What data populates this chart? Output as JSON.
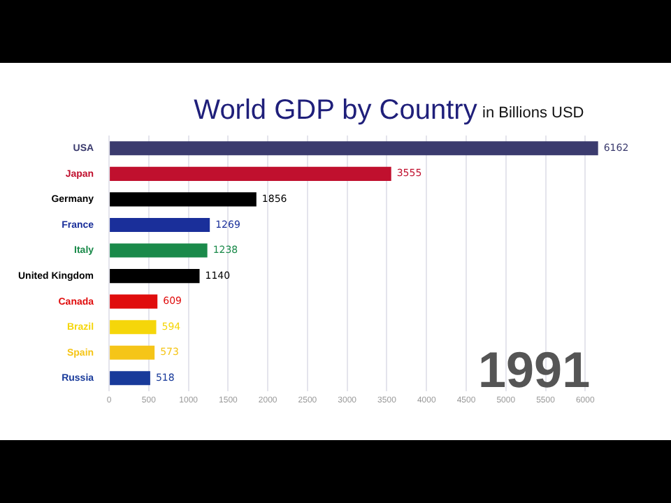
{
  "chart_data": {
    "type": "bar",
    "orientation": "horizontal",
    "title": "World GDP by Country",
    "subtitle": "in Billions USD",
    "categories": [
      "USA",
      "Japan",
      "Germany",
      "France",
      "Italy",
      "United Kingdom",
      "Canada",
      "Brazil",
      "Spain",
      "Russia"
    ],
    "values": [
      6162,
      3555,
      1856,
      1269,
      1238,
      1140,
      609,
      594,
      573,
      518
    ],
    "colors": [
      "#3b3b6e",
      "#c0102e",
      "#000000",
      "#1a2f9a",
      "#1a8a4a",
      "#000000",
      "#e00d0d",
      "#f5d60a",
      "#f5c518",
      "#183a9a"
    ],
    "data_labels": true,
    "xlim": [
      0,
      6200
    ],
    "xticks": [
      0,
      500,
      1000,
      1500,
      2000,
      2500,
      3000,
      3500,
      4000,
      4500,
      5000,
      5500,
      6000
    ],
    "grid": "x",
    "legend": false,
    "annotations": [
      "1991"
    ]
  }
}
